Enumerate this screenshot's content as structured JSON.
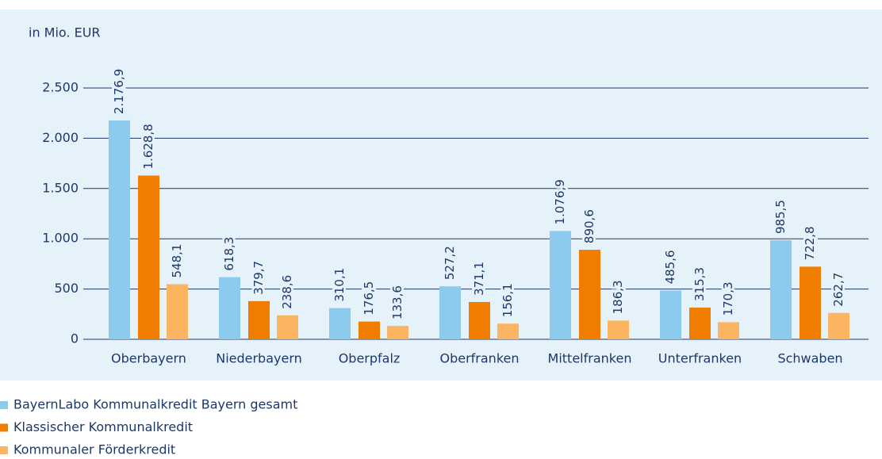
{
  "chart_data": {
    "type": "bar",
    "y_axis_label": "in Mio. EUR",
    "categories": [
      "Oberbayern",
      "Niederbayern",
      "Oberpfalz",
      "Oberfranken",
      "Mittelfranken",
      "Unterfranken",
      "Schwaben"
    ],
    "series": [
      {
        "name": "BayernLabo Kommunalkredit Bayern gesamt",
        "color": "#8ccbee",
        "values": [
          2176.9,
          618.3,
          310.1,
          527.2,
          1076.9,
          485.6,
          985.5
        ],
        "value_labels": [
          "2.176,9",
          "618,3",
          "310,1",
          "527,2",
          "1.076,9",
          "485,6",
          "985,5"
        ]
      },
      {
        "name": "Klassischer Kommunalkredit",
        "color": "#f07d00",
        "values": [
          1628.8,
          379.7,
          176.5,
          371.1,
          890.6,
          315.3,
          722.8
        ],
        "value_labels": [
          "1.628,8",
          "379,7",
          "176,5",
          "371,1",
          "890,6",
          "315,3",
          "722,8"
        ]
      },
      {
        "name": "Kommunaler Förderkredit",
        "color": "#fbb45f",
        "values": [
          548.1,
          238.6,
          133.6,
          156.1,
          186.3,
          170.3,
          262.7
        ],
        "value_labels": [
          "548,1",
          "238,6",
          "133,6",
          "156,1",
          "186,3",
          "170,3",
          "262,7"
        ]
      }
    ],
    "ylim": [
      0,
      2500
    ],
    "yticks": [
      0,
      500,
      {
        "value": 1000,
        "label": "1.000"
      },
      {
        "value": 1500,
        "label": "1.500"
      },
      {
        "value": 2000,
        "label": "2.000"
      },
      {
        "value": 2500,
        "label": "2.500"
      }
    ],
    "grid": true
  }
}
